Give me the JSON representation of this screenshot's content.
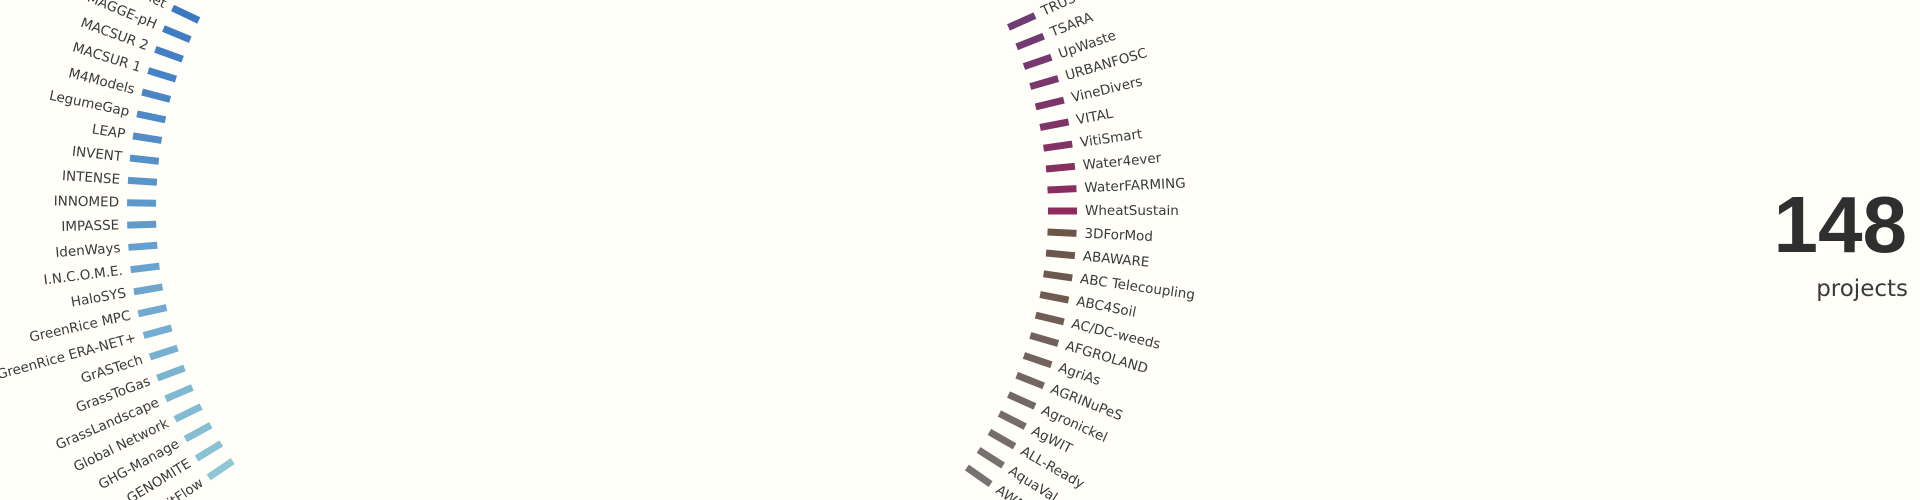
{
  "arcs": [
    {
      "items": [
        "FruitFlow",
        "GENOMITE",
        "GHG-Manage",
        "Global Network",
        "GrassLandscape",
        "GrassToGas",
        "GrASTech",
        "GreenRice ERA-NET+",
        "GreenRice MPC",
        "HaloSYS",
        "I.N.C.O.M.E.",
        "IdenWays",
        "IMPASSE",
        "INNOMED",
        "INTENSE",
        "INVENT",
        "LEAP",
        "LegumeGap",
        "M4Models",
        "MACSUR 1",
        "MACSUR 2",
        "MAGGE-pH",
        "MAGGnet"
      ],
      "colors": [
        "#8ec6d6",
        "#3b78c3"
      ]
    },
    {
      "items": [
        "TRUSTFARM",
        "TSARA",
        "UpWaste",
        "URBANFOSC",
        "VineDivers",
        "VITAL",
        "VitiSmart",
        "Water4ever",
        "WaterFARMING",
        "WheatSustain"
      ],
      "colors": [
        "#6f3c74",
        "#8c2d5c"
      ]
    },
    {
      "items": [
        "3DForMod",
        "ABAWARE",
        "ABC Telecoupling",
        "ABC4Soil",
        "AC/DC-weeds",
        "AFGROLAND",
        "AgriAs",
        "AGRINuPeS",
        "Agronickel",
        "AgWIT",
        "ALL-Ready",
        "AquaVal",
        "AWARE"
      ],
      "colors": [
        "#6b5448",
        "#787272"
      ]
    }
  ],
  "counter": {
    "value": 148,
    "label": "projects"
  }
}
